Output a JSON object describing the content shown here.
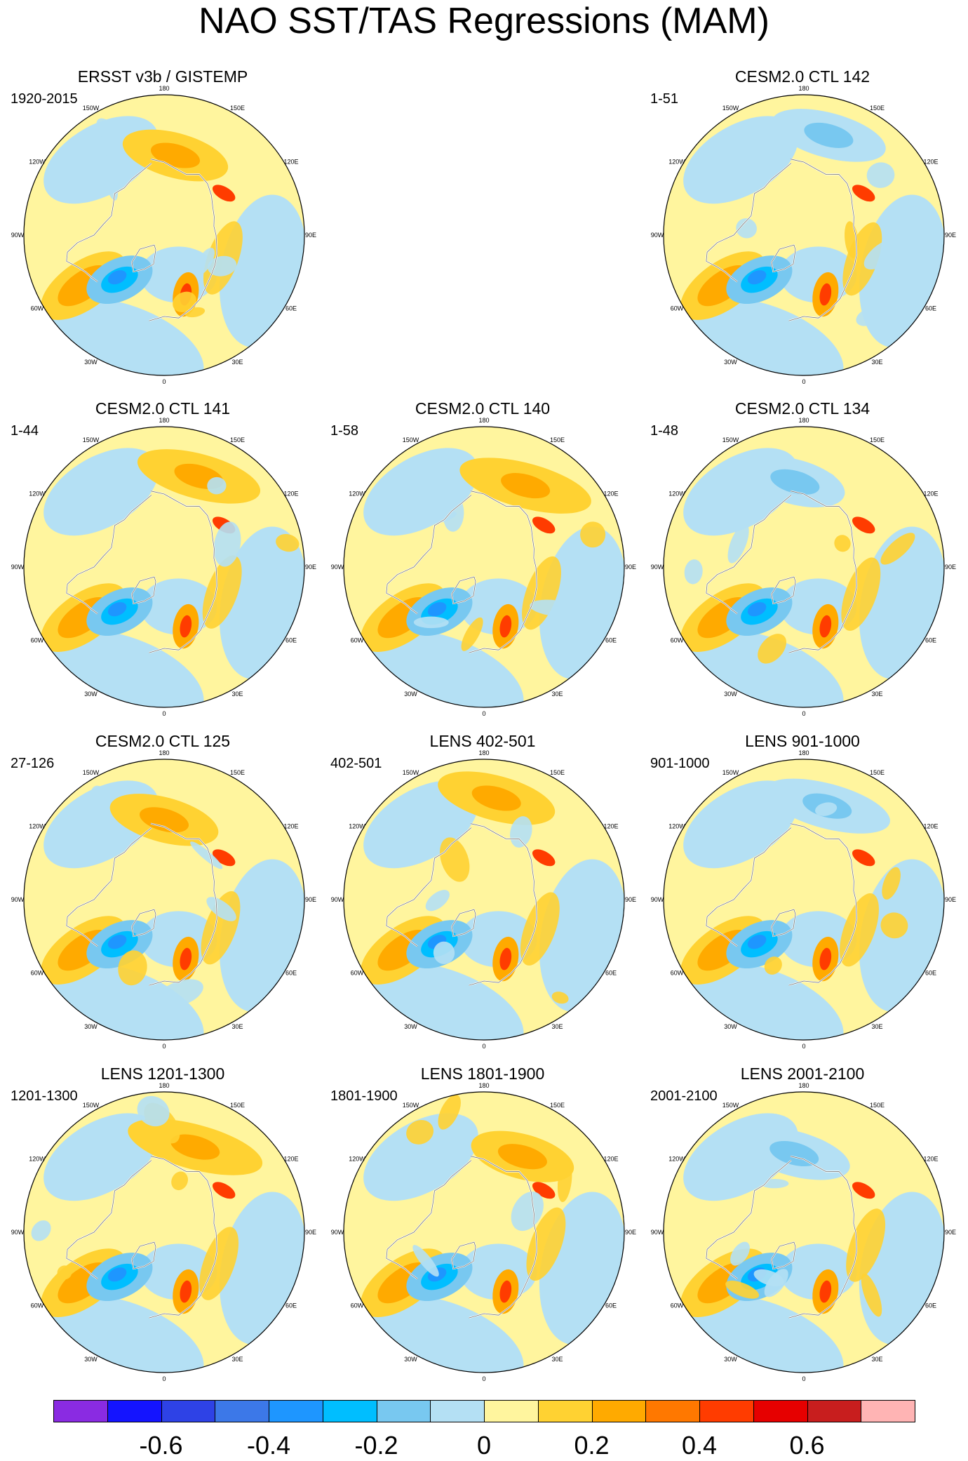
{
  "title": "NAO SST/TAS Regressions (MAM)",
  "longitude_labels": [
    {
      "text": "180",
      "lon": 180
    },
    {
      "text": "150E",
      "lon": 150
    },
    {
      "text": "120E",
      "lon": 120
    },
    {
      "text": "90E",
      "lon": 90
    },
    {
      "text": "60E",
      "lon": 60
    },
    {
      "text": "30E",
      "lon": 30
    },
    {
      "text": "0",
      "lon": 0
    },
    {
      "text": "30W",
      "lon": -30
    },
    {
      "text": "60W",
      "lon": -60
    },
    {
      "text": "90W",
      "lon": -90
    },
    {
      "text": "120W",
      "lon": -120
    },
    {
      "text": "150W",
      "lon": -150
    }
  ],
  "panels": [
    {
      "id": "ersst",
      "title": "ERSST v3b / GISTEMP",
      "period": "1920-2015"
    },
    {
      "id": "ctl142",
      "title": "CESM2.0 CTL 142",
      "period": "1-51"
    },
    {
      "id": "ctl141",
      "title": "CESM2.0 CTL 141",
      "period": "1-44"
    },
    {
      "id": "ctl140",
      "title": "CESM2.0 CTL 140",
      "period": "1-58"
    },
    {
      "id": "ctl134",
      "title": "CESM2.0 CTL 134",
      "period": "1-48"
    },
    {
      "id": "ctl125",
      "title": "CESM2.0 CTL 125",
      "period": "27-126"
    },
    {
      "id": "lens402",
      "title": "LENS 402-501",
      "period": "402-501"
    },
    {
      "id": "lens901",
      "title": "LENS 901-1000",
      "period": "901-1000"
    },
    {
      "id": "lens1201",
      "title": "LENS 1201-1300",
      "period": "1201-1300"
    },
    {
      "id": "lens1801",
      "title": "LENS 1801-1900",
      "period": "1801-1900"
    },
    {
      "id": "lens2001",
      "title": "LENS 2001-2100",
      "period": "2001-2100"
    }
  ],
  "colorbar": {
    "colors": [
      "#8a2be2",
      "#1414ff",
      "#2e42e6",
      "#3c78e8",
      "#1e96ff",
      "#00beff",
      "#78c8f0",
      "#b4e0f4",
      "#fff59e",
      "#ffd232",
      "#ffaa00",
      "#ff7800",
      "#ff3c00",
      "#e60000",
      "#c81e1e",
      "#ffb4b4"
    ],
    "tick_labels": [
      {
        "text": "-0.6",
        "boundary": 2
      },
      {
        "text": "-0.4",
        "boundary": 4
      },
      {
        "text": "-0.2",
        "boundary": 6
      },
      {
        "text": "0",
        "boundary": 8
      },
      {
        "text": "0.2",
        "boundary": 10
      },
      {
        "text": "0.4",
        "boundary": 12
      },
      {
        "text": "0.6",
        "boundary": 14
      }
    ]
  }
}
